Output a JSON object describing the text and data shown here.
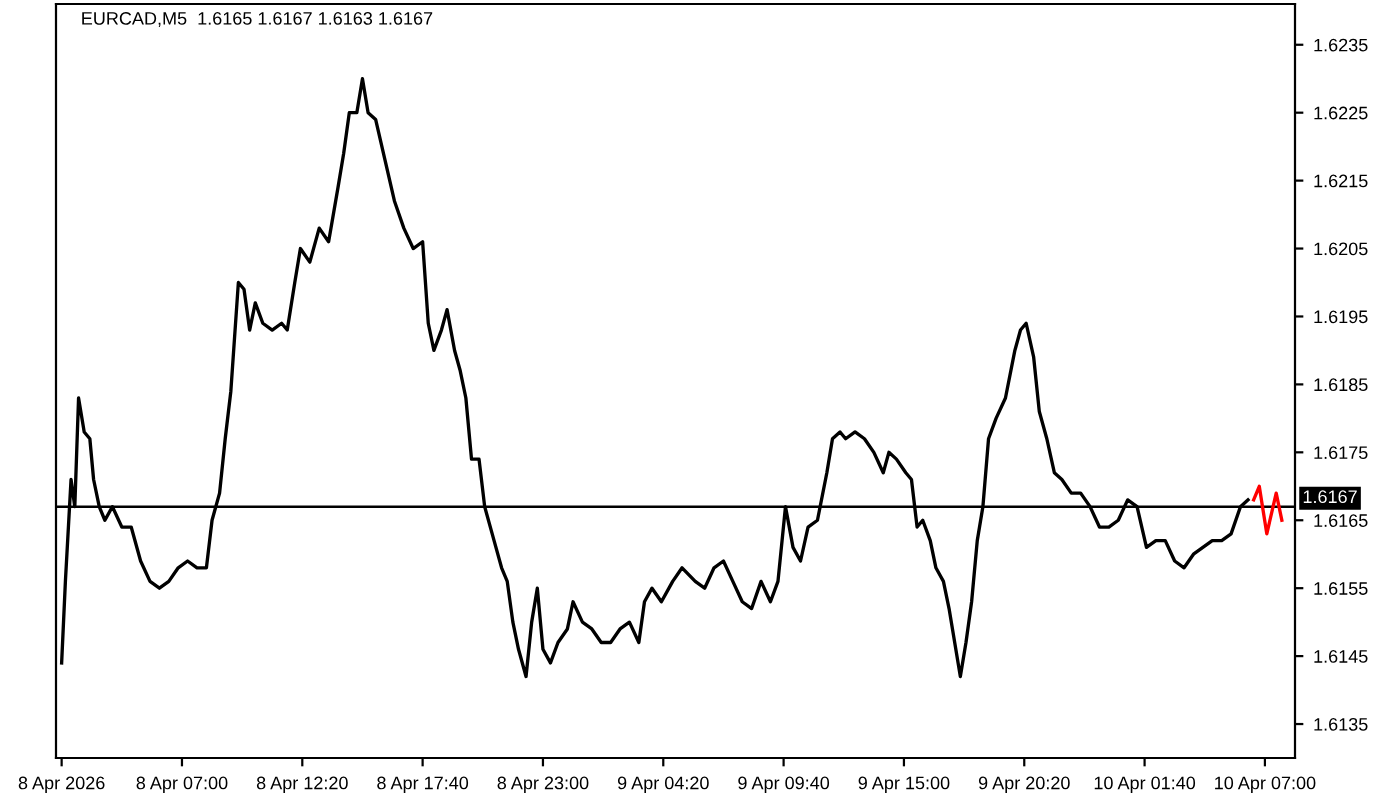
{
  "chart_data": {
    "type": "line",
    "title": "EURCAD,M5  1.6165 1.6167 1.6163 1.6167",
    "series": [
      {
        "color": "#000000",
        "x": [
          "2026-04-08T01:40",
          "2026-04-08T01:50",
          "2026-04-08T02:05",
          "2026-04-08T02:15",
          "2026-04-08T02:25",
          "2026-04-08T02:40",
          "2026-04-08T02:55",
          "2026-04-08T03:05",
          "2026-04-08T03:20",
          "2026-04-08T03:35",
          "2026-04-08T03:55",
          "2026-04-08T04:20",
          "2026-04-08T04:45",
          "2026-04-08T05:10",
          "2026-04-08T05:35",
          "2026-04-08T06:00",
          "2026-04-08T06:25",
          "2026-04-08T06:50",
          "2026-04-08T07:15",
          "2026-04-08T07:40",
          "2026-04-08T08:05",
          "2026-04-08T08:20",
          "2026-04-08T08:40",
          "2026-04-08T08:55",
          "2026-04-08T09:10",
          "2026-04-08T09:30",
          "2026-04-08T09:45",
          "2026-04-08T10:00",
          "2026-04-08T10:15",
          "2026-04-08T10:35",
          "2026-04-08T11:00",
          "2026-04-08T11:25",
          "2026-04-08T11:40",
          "2026-04-08T12:00",
          "2026-04-08T12:15",
          "2026-04-08T12:40",
          "2026-04-08T13:05",
          "2026-04-08T13:30",
          "2026-04-08T13:55",
          "2026-04-08T14:10",
          "2026-04-08T14:25",
          "2026-04-08T14:45",
          "2026-04-08T15:00",
          "2026-04-08T15:15",
          "2026-04-08T15:35",
          "2026-04-08T16:00",
          "2026-04-08T16:25",
          "2026-04-08T16:50",
          "2026-04-08T17:15",
          "2026-04-08T17:40",
          "2026-04-08T17:55",
          "2026-04-08T18:10",
          "2026-04-08T18:30",
          "2026-04-08T18:45",
          "2026-04-08T19:05",
          "2026-04-08T19:20",
          "2026-04-08T19:35",
          "2026-04-08T19:50",
          "2026-04-08T20:10",
          "2026-04-08T20:25",
          "2026-04-08T20:50",
          "2026-04-08T21:10",
          "2026-04-08T21:25",
          "2026-04-08T21:40",
          "2026-04-08T21:55",
          "2026-04-08T22:15",
          "2026-04-08T22:30",
          "2026-04-08T22:45",
          "2026-04-08T23:00",
          "2026-04-08T23:20",
          "2026-04-08T23:40",
          "2026-04-09T00:05",
          "2026-04-09T00:20",
          "2026-04-09T00:45",
          "2026-04-09T01:10",
          "2026-04-09T01:35",
          "2026-04-09T02:00",
          "2026-04-09T02:25",
          "2026-04-09T02:50",
          "2026-04-09T03:15",
          "2026-04-09T03:30",
          "2026-04-09T03:50",
          "2026-04-09T04:15",
          "2026-04-09T04:45",
          "2026-04-09T05:10",
          "2026-04-09T05:45",
          "2026-04-09T06:10",
          "2026-04-09T06:35",
          "2026-04-09T07:00",
          "2026-04-09T07:25",
          "2026-04-09T07:50",
          "2026-04-09T08:15",
          "2026-04-09T08:40",
          "2026-04-09T09:05",
          "2026-04-09T09:25",
          "2026-04-09T09:45",
          "2026-04-09T10:05",
          "2026-04-09T10:25",
          "2026-04-09T10:45",
          "2026-04-09T11:10",
          "2026-04-09T11:35",
          "2026-04-09T11:50",
          "2026-04-09T12:10",
          "2026-04-09T12:25",
          "2026-04-09T12:50",
          "2026-04-09T13:15",
          "2026-04-09T13:40",
          "2026-04-09T14:05",
          "2026-04-09T14:20",
          "2026-04-09T14:40",
          "2026-04-09T15:05",
          "2026-04-09T15:20",
          "2026-04-09T15:35",
          "2026-04-09T15:50",
          "2026-04-09T16:10",
          "2026-04-09T16:25",
          "2026-04-09T16:45",
          "2026-04-09T17:00",
          "2026-04-09T17:15",
          "2026-04-09T17:30",
          "2026-04-09T17:45",
          "2026-04-09T18:00",
          "2026-04-09T18:15",
          "2026-04-09T18:30",
          "2026-04-09T18:45",
          "2026-04-09T19:05",
          "2026-04-09T19:30",
          "2026-04-09T19:55",
          "2026-04-09T20:10",
          "2026-04-09T20:25",
          "2026-04-09T20:45",
          "2026-04-09T21:00",
          "2026-04-09T21:20",
          "2026-04-09T21:40",
          "2026-04-09T22:00",
          "2026-04-09T22:25",
          "2026-04-09T22:50",
          "2026-04-09T23:15",
          "2026-04-09T23:40",
          "2026-04-10T00:05",
          "2026-04-10T00:30",
          "2026-04-10T00:55",
          "2026-04-10T01:20",
          "2026-04-10T01:45",
          "2026-04-10T02:10",
          "2026-04-10T02:35",
          "2026-04-10T03:00",
          "2026-04-10T03:25",
          "2026-04-10T03:50",
          "2026-04-10T04:15",
          "2026-04-10T04:40",
          "2026-04-10T05:05",
          "2026-04-10T05:30",
          "2026-04-10T05:55",
          "2026-04-10T06:15"
        ],
        "values": [
          1.6144,
          1.6156,
          1.6171,
          1.6167,
          1.6183,
          1.6178,
          1.6177,
          1.6171,
          1.6167,
          1.6165,
          1.6167,
          1.6164,
          1.6164,
          1.6159,
          1.6156,
          1.6155,
          1.6156,
          1.6158,
          1.6159,
          1.6158,
          1.6158,
          1.6165,
          1.6169,
          1.6177,
          1.6184,
          1.62,
          1.6199,
          1.6193,
          1.6197,
          1.6194,
          1.6193,
          1.6194,
          1.6193,
          1.62,
          1.6205,
          1.6203,
          1.6208,
          1.6206,
          1.6214,
          1.6219,
          1.6225,
          1.6225,
          1.623,
          1.6225,
          1.6224,
          1.6218,
          1.6212,
          1.6208,
          1.6205,
          1.6206,
          1.6194,
          1.619,
          1.6193,
          1.6196,
          1.619,
          1.6187,
          1.6183,
          1.6174,
          1.6174,
          1.6167,
          1.6162,
          1.6158,
          1.6156,
          1.615,
          1.6146,
          1.6142,
          1.615,
          1.6155,
          1.6146,
          1.6144,
          1.6147,
          1.6149,
          1.6153,
          1.615,
          1.6149,
          1.6147,
          1.6147,
          1.6149,
          1.615,
          1.6147,
          1.6153,
          1.6155,
          1.6153,
          1.6156,
          1.6158,
          1.6156,
          1.6155,
          1.6158,
          1.6159,
          1.6156,
          1.6153,
          1.6152,
          1.6156,
          1.6153,
          1.6156,
          1.6167,
          1.6161,
          1.6159,
          1.6164,
          1.6165,
          1.6172,
          1.6177,
          1.6178,
          1.6177,
          1.6178,
          1.6177,
          1.6175,
          1.6172,
          1.6175,
          1.6174,
          1.6172,
          1.6171,
          1.6164,
          1.6165,
          1.6162,
          1.6158,
          1.6156,
          1.6152,
          1.6147,
          1.6142,
          1.6147,
          1.6153,
          1.6162,
          1.6167,
          1.6177,
          1.618,
          1.6183,
          1.619,
          1.6193,
          1.6194,
          1.6189,
          1.6181,
          1.6177,
          1.6172,
          1.6171,
          1.6169,
          1.6169,
          1.6167,
          1.6164,
          1.6164,
          1.6165,
          1.6168,
          1.6167,
          1.6161,
          1.6162,
          1.6162,
          1.6159,
          1.6158,
          1.616,
          1.6161,
          1.6162,
          1.6162,
          1.6163,
          1.6167,
          1.6168
        ]
      },
      {
        "color": "#ff0000",
        "x": [
          "2026-04-10T06:30",
          "2026-04-10T06:45",
          "2026-04-10T07:05",
          "2026-04-10T07:30",
          "2026-04-10T07:45"
        ],
        "values": [
          1.6168,
          1.617,
          1.6163,
          1.6169,
          1.6165
        ]
      }
    ],
    "xlim": [
      "2026-04-08T01:25",
      "2026-04-10T08:20"
    ],
    "xticks": [
      {
        "value": "2026-04-08T01:40",
        "label": "8 Apr 2026"
      },
      {
        "value": "2026-04-08T07:00",
        "label": "8 Apr 07:00"
      },
      {
        "value": "2026-04-08T12:20",
        "label": "8 Apr 12:20"
      },
      {
        "value": "2026-04-08T17:40",
        "label": "8 Apr 17:40"
      },
      {
        "value": "2026-04-08T23:00",
        "label": "8 Apr 23:00"
      },
      {
        "value": "2026-04-09T04:20",
        "label": "9 Apr 04:20"
      },
      {
        "value": "2026-04-09T09:40",
        "label": "9 Apr 09:40"
      },
      {
        "value": "2026-04-09T15:00",
        "label": "9 Apr 15:00"
      },
      {
        "value": "2026-04-09T20:20",
        "label": "9 Apr 20:20"
      },
      {
        "value": "2026-04-10T01:40",
        "label": "10 Apr 01:40"
      },
      {
        "value": "2026-04-10T07:00",
        "label": "10 Apr 07:00"
      }
    ],
    "ylim": [
      1.613,
      1.6241
    ],
    "yticks": [
      1.6135,
      1.6145,
      1.6155,
      1.6165,
      1.6175,
      1.6185,
      1.6195,
      1.6205,
      1.6215,
      1.6225,
      1.6235
    ],
    "ref_lines": [
      {
        "axis": "y",
        "value": 1.6167,
        "label": "1.6167",
        "color": "#000000"
      }
    ],
    "grid": false,
    "marker": "none",
    "line_style": "solid"
  }
}
